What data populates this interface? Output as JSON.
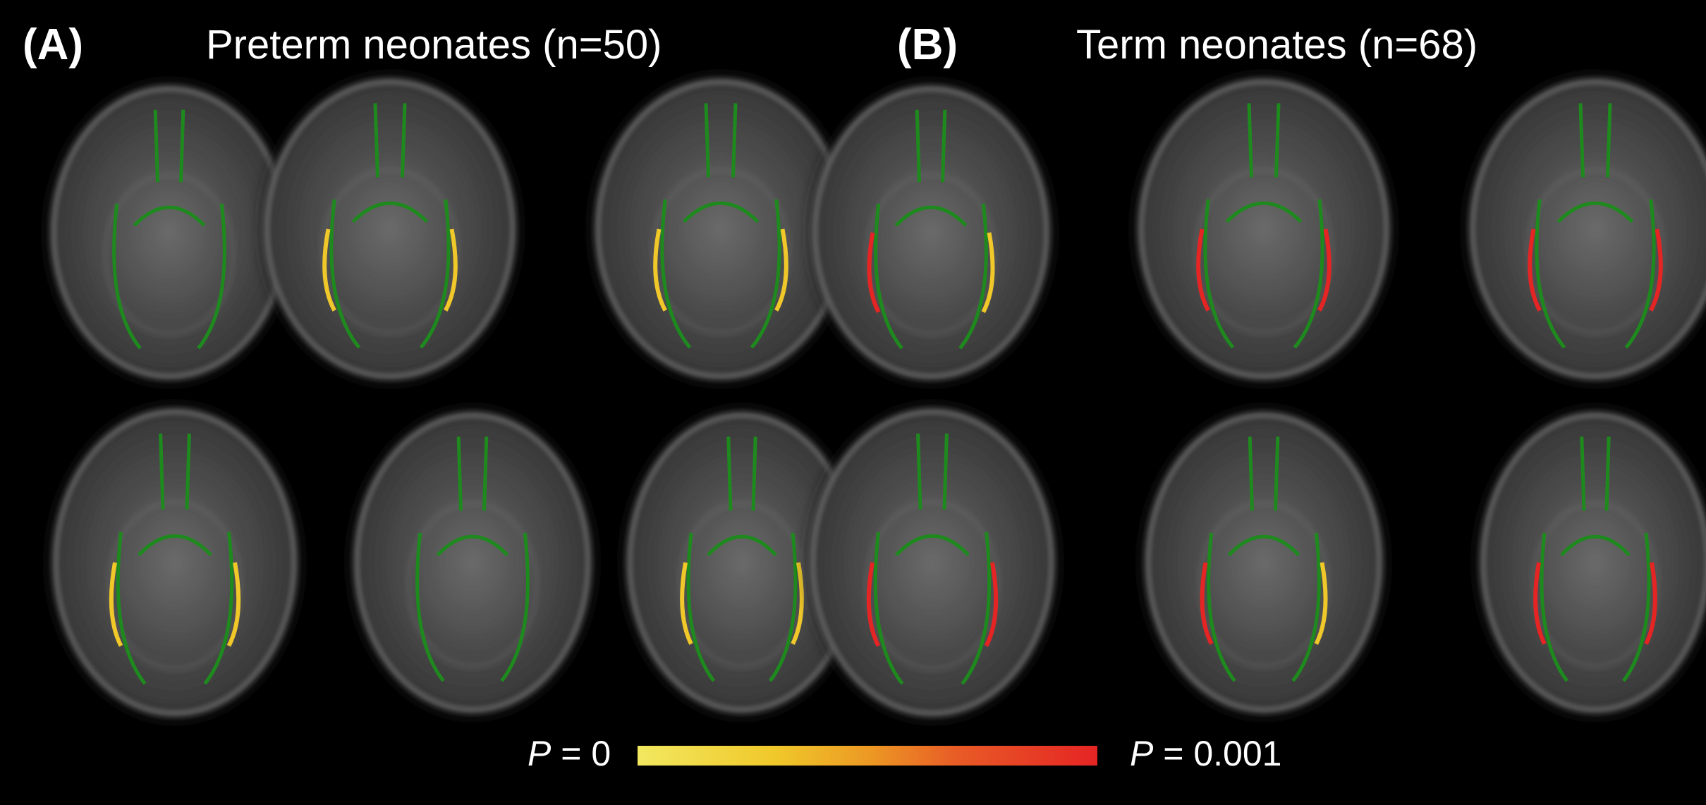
{
  "panels": [
    {
      "letter": "(A)",
      "title": "Preterm neonates (n=50)"
    },
    {
      "letter": "(B)",
      "title": "Term neonates (n=68)"
    }
  ],
  "colorbar": {
    "left_italic": "P",
    "left_value": " = 0",
    "right_italic": "P",
    "right_value": " = 0.001",
    "colors": [
      "#f2e860",
      "#f0c82a",
      "#ec9a24",
      "#e85a26",
      "#e52424"
    ]
  },
  "overlay_colors": {
    "skeleton": "#1e8a1e",
    "significant_low_p": "#f0c82a",
    "significant_high_p": "#e52424"
  }
}
